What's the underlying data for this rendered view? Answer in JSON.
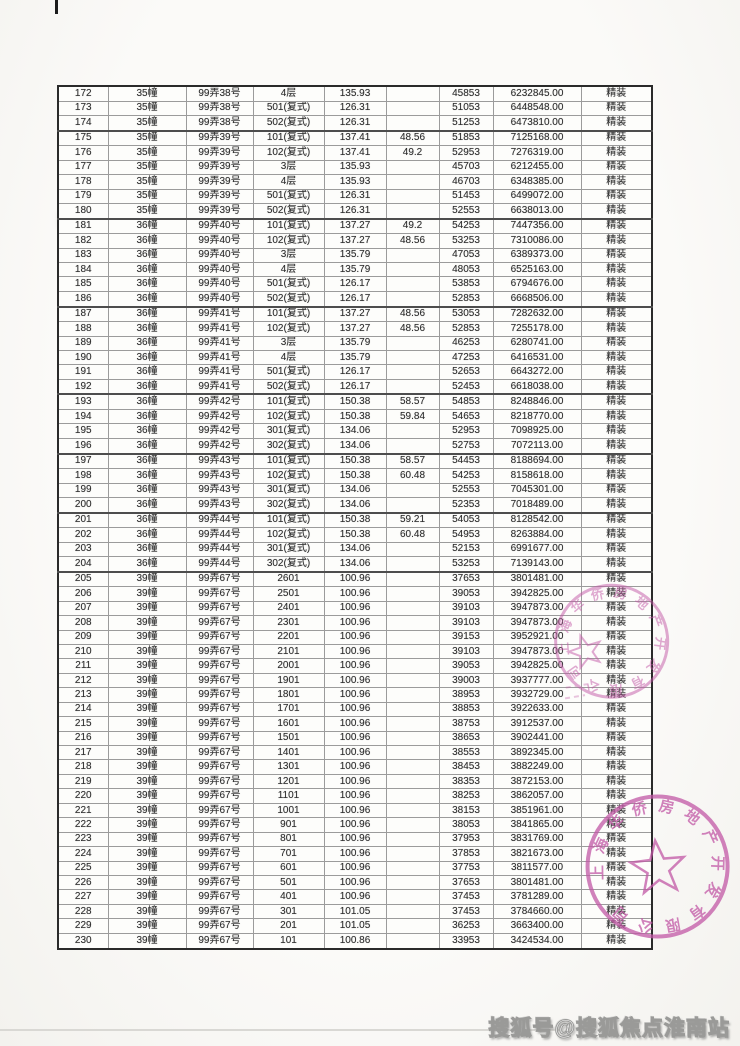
{
  "table": {
    "rows": [
      [
        "172",
        "35幢",
        "99弄38号",
        "4层",
        "135.93",
        "",
        "45853",
        "6232845.00",
        "精装"
      ],
      [
        "173",
        "35幢",
        "99弄38号",
        "501(复式)",
        "126.31",
        "",
        "51053",
        "6448548.00",
        "精装"
      ],
      [
        "174",
        "35幢",
        "99弄38号",
        "502(复式)",
        "126.31",
        "",
        "51253",
        "6473810.00",
        "精装"
      ],
      [
        "175",
        "35幢",
        "99弄39号",
        "101(复式)",
        "137.41",
        "48.56",
        "51853",
        "7125168.00",
        "精装"
      ],
      [
        "176",
        "35幢",
        "99弄39号",
        "102(复式)",
        "137.41",
        "49.2",
        "52953",
        "7276319.00",
        "精装"
      ],
      [
        "177",
        "35幢",
        "99弄39号",
        "3层",
        "135.93",
        "",
        "45703",
        "6212455.00",
        "精装"
      ],
      [
        "178",
        "35幢",
        "99弄39号",
        "4层",
        "135.93",
        "",
        "46703",
        "6348385.00",
        "精装"
      ],
      [
        "179",
        "35幢",
        "99弄39号",
        "501(复式)",
        "126.31",
        "",
        "51453",
        "6499072.00",
        "精装"
      ],
      [
        "180",
        "35幢",
        "99弄39号",
        "502(复式)",
        "126.31",
        "",
        "52553",
        "6638013.00",
        "精装"
      ],
      [
        "181",
        "36幢",
        "99弄40号",
        "101(复式)",
        "137.27",
        "49.2",
        "54253",
        "7447356.00",
        "精装"
      ],
      [
        "182",
        "36幢",
        "99弄40号",
        "102(复式)",
        "137.27",
        "48.56",
        "53253",
        "7310086.00",
        "精装"
      ],
      [
        "183",
        "36幢",
        "99弄40号",
        "3层",
        "135.79",
        "",
        "47053",
        "6389373.00",
        "精装"
      ],
      [
        "184",
        "36幢",
        "99弄40号",
        "4层",
        "135.79",
        "",
        "48053",
        "6525163.00",
        "精装"
      ],
      [
        "185",
        "36幢",
        "99弄40号",
        "501(复式)",
        "126.17",
        "",
        "53853",
        "6794676.00",
        "精装"
      ],
      [
        "186",
        "36幢",
        "99弄40号",
        "502(复式)",
        "126.17",
        "",
        "52853",
        "6668506.00",
        "精装"
      ],
      [
        "187",
        "36幢",
        "99弄41号",
        "101(复式)",
        "137.27",
        "48.56",
        "53053",
        "7282632.00",
        "精装"
      ],
      [
        "188",
        "36幢",
        "99弄41号",
        "102(复式)",
        "137.27",
        "48.56",
        "52853",
        "7255178.00",
        "精装"
      ],
      [
        "189",
        "36幢",
        "99弄41号",
        "3层",
        "135.79",
        "",
        "46253",
        "6280741.00",
        "精装"
      ],
      [
        "190",
        "36幢",
        "99弄41号",
        "4层",
        "135.79",
        "",
        "47253",
        "6416531.00",
        "精装"
      ],
      [
        "191",
        "36幢",
        "99弄41号",
        "501(复式)",
        "126.17",
        "",
        "52653",
        "6643272.00",
        "精装"
      ],
      [
        "192",
        "36幢",
        "99弄41号",
        "502(复式)",
        "126.17",
        "",
        "52453",
        "6618038.00",
        "精装"
      ],
      [
        "193",
        "36幢",
        "99弄42号",
        "101(复式)",
        "150.38",
        "58.57",
        "54853",
        "8248846.00",
        "精装"
      ],
      [
        "194",
        "36幢",
        "99弄42号",
        "102(复式)",
        "150.38",
        "59.84",
        "54653",
        "8218770.00",
        "精装"
      ],
      [
        "195",
        "36幢",
        "99弄42号",
        "301(复式)",
        "134.06",
        "",
        "52953",
        "7098925.00",
        "精装"
      ],
      [
        "196",
        "36幢",
        "99弄42号",
        "302(复式)",
        "134.06",
        "",
        "52753",
        "7072113.00",
        "精装"
      ],
      [
        "197",
        "36幢",
        "99弄43号",
        "101(复式)",
        "150.38",
        "58.57",
        "54453",
        "8188694.00",
        "精装"
      ],
      [
        "198",
        "36幢",
        "99弄43号",
        "102(复式)",
        "150.38",
        "60.48",
        "54253",
        "8158618.00",
        "精装"
      ],
      [
        "199",
        "36幢",
        "99弄43号",
        "301(复式)",
        "134.06",
        "",
        "52553",
        "7045301.00",
        "精装"
      ],
      [
        "200",
        "36幢",
        "99弄43号",
        "302(复式)",
        "134.06",
        "",
        "52353",
        "7018489.00",
        "精装"
      ],
      [
        "201",
        "36幢",
        "99弄44号",
        "101(复式)",
        "150.38",
        "59.21",
        "54053",
        "8128542.00",
        "精装"
      ],
      [
        "202",
        "36幢",
        "99弄44号",
        "102(复式)",
        "150.38",
        "60.48",
        "54953",
        "8263884.00",
        "精装"
      ],
      [
        "203",
        "36幢",
        "99弄44号",
        "301(复式)",
        "134.06",
        "",
        "52153",
        "6991677.00",
        "精装"
      ],
      [
        "204",
        "36幢",
        "99弄44号",
        "302(复式)",
        "134.06",
        "",
        "53253",
        "7139143.00",
        "精装"
      ],
      [
        "205",
        "39幢",
        "99弄67号",
        "2601",
        "100.96",
        "",
        "37653",
        "3801481.00",
        "精装"
      ],
      [
        "206",
        "39幢",
        "99弄67号",
        "2501",
        "100.96",
        "",
        "39053",
        "3942825.00",
        "精装"
      ],
      [
        "207",
        "39幢",
        "99弄67号",
        "2401",
        "100.96",
        "",
        "39103",
        "3947873.00",
        "精装"
      ],
      [
        "208",
        "39幢",
        "99弄67号",
        "2301",
        "100.96",
        "",
        "39103",
        "3947873.00",
        "精装"
      ],
      [
        "209",
        "39幢",
        "99弄67号",
        "2201",
        "100.96",
        "",
        "39153",
        "3952921.00",
        "精装"
      ],
      [
        "210",
        "39幢",
        "99弄67号",
        "2101",
        "100.96",
        "",
        "39103",
        "3947873.00",
        "精装"
      ],
      [
        "211",
        "39幢",
        "99弄67号",
        "2001",
        "100.96",
        "",
        "39053",
        "3942825.00",
        "精装"
      ],
      [
        "212",
        "39幢",
        "99弄67号",
        "1901",
        "100.96",
        "",
        "39003",
        "3937777.00",
        "精装"
      ],
      [
        "213",
        "39幢",
        "99弄67号",
        "1801",
        "100.96",
        "",
        "38953",
        "3932729.00",
        "精装"
      ],
      [
        "214",
        "39幢",
        "99弄67号",
        "1701",
        "100.96",
        "",
        "38853",
        "3922633.00",
        "精装"
      ],
      [
        "215",
        "39幢",
        "99弄67号",
        "1601",
        "100.96",
        "",
        "38753",
        "3912537.00",
        "精装"
      ],
      [
        "216",
        "39幢",
        "99弄67号",
        "1501",
        "100.96",
        "",
        "38653",
        "3902441.00",
        "精装"
      ],
      [
        "217",
        "39幢",
        "99弄67号",
        "1401",
        "100.96",
        "",
        "38553",
        "3892345.00",
        "精装"
      ],
      [
        "218",
        "39幢",
        "99弄67号",
        "1301",
        "100.96",
        "",
        "38453",
        "3882249.00",
        "精装"
      ],
      [
        "219",
        "39幢",
        "99弄67号",
        "1201",
        "100.96",
        "",
        "38353",
        "3872153.00",
        "精装"
      ],
      [
        "220",
        "39幢",
        "99弄67号",
        "1101",
        "100.96",
        "",
        "38253",
        "3862057.00",
        "精装"
      ],
      [
        "221",
        "39幢",
        "99弄67号",
        "1001",
        "100.96",
        "",
        "38153",
        "3851961.00",
        "精装"
      ],
      [
        "222",
        "39幢",
        "99弄67号",
        "901",
        "100.96",
        "",
        "38053",
        "3841865.00",
        "精装"
      ],
      [
        "223",
        "39幢",
        "99弄67号",
        "801",
        "100.96",
        "",
        "37953",
        "3831769.00",
        "精装"
      ],
      [
        "224",
        "39幢",
        "99弄67号",
        "701",
        "100.96",
        "",
        "37853",
        "3821673.00",
        "精装"
      ],
      [
        "225",
        "39幢",
        "99弄67号",
        "601",
        "100.96",
        "",
        "37753",
        "3811577.00",
        "精装"
      ],
      [
        "226",
        "39幢",
        "99弄67号",
        "501",
        "100.96",
        "",
        "37653",
        "3801481.00",
        "精装"
      ],
      [
        "227",
        "39幢",
        "99弄67号",
        "401",
        "100.96",
        "",
        "37453",
        "3781289.00",
        "精装"
      ],
      [
        "228",
        "39幢",
        "99弄67号",
        "301",
        "101.05",
        "",
        "37453",
        "3784660.00",
        "精装"
      ],
      [
        "229",
        "39幢",
        "99弄67号",
        "201",
        "101.05",
        "",
        "36253",
        "3663400.00",
        "精装"
      ],
      [
        "230",
        "39幢",
        "99弄67号",
        "101",
        "100.86",
        "",
        "33953",
        "3424534.00",
        "精装"
      ]
    ],
    "group_start_rows": [
      "175",
      "181",
      "187",
      "193",
      "197",
      "201",
      "205"
    ]
  },
  "stamps": {
    "seal_text": "上海华侨房地产开发有限公司",
    "color": "#c258a6"
  },
  "watermark": {
    "text": "搜狐号@搜狐焦点淮南站"
  }
}
